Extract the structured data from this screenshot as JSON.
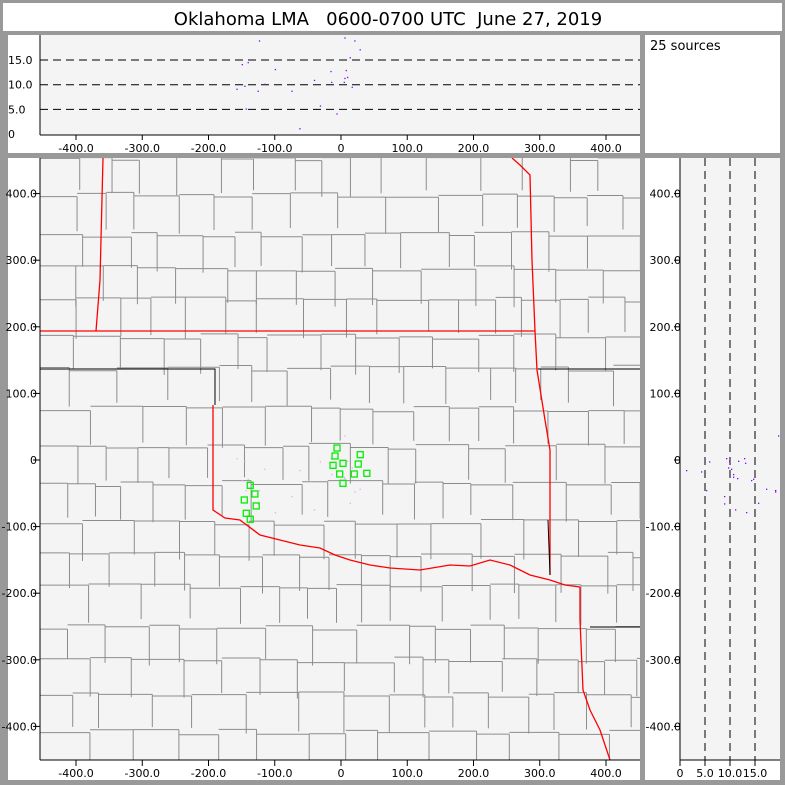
{
  "title": "Oklahoma LMA   0600-0700 UTC  June 27, 2019",
  "source_count_label": "25 sources",
  "colors": {
    "source": "#8a00ff",
    "flash_marker": "#00ee00",
    "state_border": "#ff0000",
    "county_border": "#8c8c8c",
    "plot_bg": "#f4f4f4"
  },
  "chart_data": [
    {
      "type": "scatter",
      "panel": "altitude-vs-east-west",
      "xlim": [
        -450,
        450
      ],
      "ylim": [
        0,
        20
      ],
      "xticks": [
        "-400.0",
        "-300.0",
        "-200.0",
        "-100.0",
        "0",
        "100.0",
        "200.0",
        "300.0",
        "400.0"
      ],
      "xtick_values": [
        -400,
        -300,
        -200,
        -100,
        0,
        100,
        200,
        300,
        400
      ],
      "yticks": [
        "0",
        "5.0",
        "10.0",
        "15.0"
      ],
      "ytick_values": [
        0,
        5,
        10,
        15
      ],
      "grid": "dashed horizontal at 5, 10, 15"
    },
    {
      "type": "scatter",
      "panel": "plan-view-map",
      "xlim": [
        -450,
        450
      ],
      "ylim": [
        -450,
        450
      ],
      "xticks": [
        "-400.0",
        "-300.0",
        "-200.0",
        "-100.0",
        "0",
        "100.0",
        "200.0",
        "300.0",
        "400.0"
      ],
      "xtick_values": [
        -400,
        -300,
        -200,
        -100,
        0,
        100,
        200,
        300,
        400
      ],
      "yticks": [
        "400.0",
        "300.0",
        "200.0",
        "100.0",
        "0",
        "-100.0",
        "-200.0",
        "-300.0",
        "-400.0"
      ],
      "ytick_values": [
        400,
        300,
        200,
        100,
        0,
        -100,
        -200,
        -300,
        -400
      ],
      "flash_markers": [
        [
          -6,
          18
        ],
        [
          -9,
          6
        ],
        [
          29,
          8
        ],
        [
          3,
          -5
        ],
        [
          -12,
          -8
        ],
        [
          26,
          -6
        ],
        [
          -2,
          -21
        ],
        [
          20,
          -21
        ],
        [
          39,
          -20
        ],
        [
          3,
          -35
        ],
        [
          -137,
          -38
        ],
        [
          -130,
          -51
        ],
        [
          -146,
          -60
        ],
        [
          -128,
          -69
        ],
        [
          -143,
          -80
        ],
        [
          -137,
          -89
        ]
      ]
    },
    {
      "type": "scatter",
      "panel": "north-south-vs-altitude",
      "xlim": [
        0,
        20
      ],
      "ylim": [
        -450,
        450
      ],
      "xticks": [
        "0",
        "5.0",
        "10.0",
        "15.0"
      ],
      "xtick_values": [
        0,
        5,
        10,
        15
      ],
      "yticks": [
        "400.0",
        "300.0",
        "200.0",
        "100.0",
        "0",
        "-100.0",
        "-200.0",
        "-300.0",
        "-400.0"
      ],
      "ytick_values": [
        400,
        300,
        200,
        100,
        0,
        -100,
        -200,
        -300,
        -400
      ],
      "grid": "dashed vertical at 5, 10, 15"
    }
  ],
  "sources": [
    {
      "x": -124,
      "y": -45,
      "alt": 19.0
    },
    {
      "x": 5,
      "y": 37,
      "alt": 19.6
    },
    {
      "x": 20,
      "y": -47,
      "alt": 19.0
    },
    {
      "x": 28,
      "y": -43,
      "alt": 17.2
    },
    {
      "x": 13,
      "y": -64,
      "alt": 15.6
    },
    {
      "x": -150,
      "y": -30,
      "alt": 14.2
    },
    {
      "x": -141,
      "y": -28,
      "alt": 14.6
    },
    {
      "x": -100,
      "y": -78,
      "alt": 13.2
    },
    {
      "x": -16,
      "y": 3,
      "alt": 12.8
    },
    {
      "x": 7,
      "y": -4,
      "alt": 13.0
    },
    {
      "x": 9,
      "y": -1,
      "alt": 11.6
    },
    {
      "x": 5,
      "y": -27,
      "alt": 11.4
    },
    {
      "x": -41,
      "y": -74,
      "alt": 11.0
    },
    {
      "x": -15,
      "y": -21,
      "alt": 10.6
    },
    {
      "x": 4,
      "y": -25,
      "alt": 10.6
    },
    {
      "x": -116,
      "y": -13,
      "alt": 10.2
    },
    {
      "x": -146,
      "y": -1,
      "alt": 9.8
    },
    {
      "x": 16,
      "y": -11,
      "alt": 9.6
    },
    {
      "x": -158,
      "y": 3,
      "alt": 9.2
    },
    {
      "x": -126,
      "y": -65,
      "alt": 8.8
    },
    {
      "x": -75,
      "y": -54,
      "alt": 8.8
    },
    {
      "x": -144,
      "y": -45,
      "alt": 5.2
    },
    {
      "x": -32,
      "y": -2,
      "alt": 5.8
    },
    {
      "x": -7,
      "y": -17,
      "alt": 4.2
    },
    {
      "x": -63,
      "y": -15,
      "alt": 1.2
    }
  ]
}
